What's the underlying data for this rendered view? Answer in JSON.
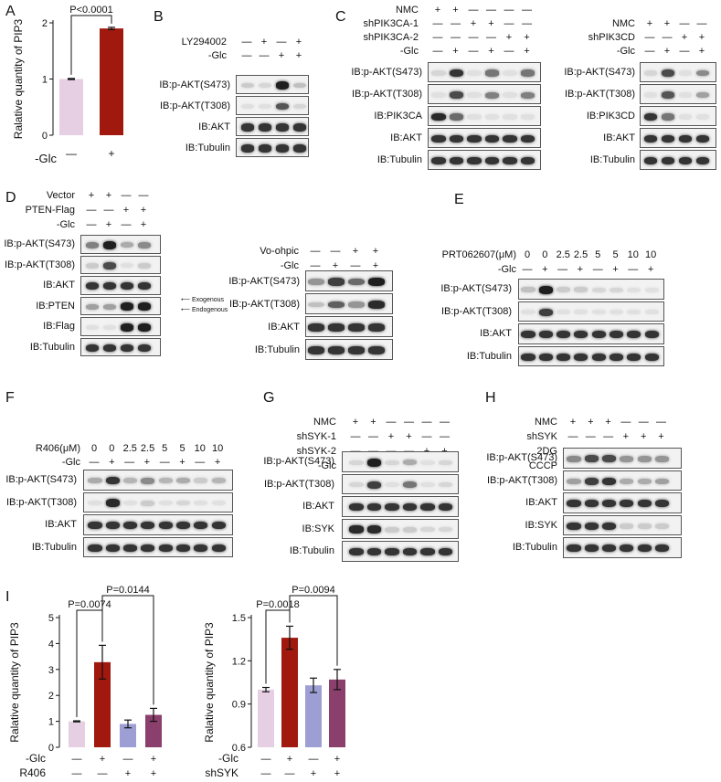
{
  "panels": {
    "A": {
      "label": "A",
      "pvalue": "P<0.0001",
      "ylabel": "Ralative quantity of PIP3",
      "row_label": "-Glc",
      "ticks": [
        "—",
        "+"
      ]
    },
    "B": {
      "label": "B",
      "conditions": [
        {
          "name": "LY294002",
          "marks": [
            "—",
            "+",
            "—",
            "+"
          ]
        },
        {
          "name": "-Glc",
          "marks": [
            "—",
            "—",
            "+",
            "+"
          ]
        }
      ],
      "blots": [
        "IB:p-AKT(S473)",
        "IB:p-AKT(T308)",
        "IB:AKT",
        "IB:Tubulin"
      ]
    },
    "C": {
      "label": "C",
      "left": {
        "conditions": [
          {
            "name": "NMC",
            "marks": [
              "+",
              "+",
              "—",
              "—",
              "—",
              "—"
            ]
          },
          {
            "name": "shPIK3CA-1",
            "marks": [
              "—",
              "—",
              "+",
              "+",
              "—",
              "—"
            ]
          },
          {
            "name": "shPIK3CA-2",
            "marks": [
              "—",
              "—",
              "—",
              "—",
              "+",
              "+"
            ]
          },
          {
            "name": "-Glc",
            "marks": [
              "—",
              "+",
              "—",
              "+",
              "—",
              "+"
            ]
          }
        ],
        "blots": [
          "IB:p-AKT(S473)",
          "IB:p-AKT(T308)",
          "IB:PIK3CA",
          "IB:AKT",
          "IB:Tubulin"
        ]
      },
      "right": {
        "conditions": [
          {
            "name": "NMC",
            "marks": [
              "+",
              "+",
              "—",
              "—"
            ]
          },
          {
            "name": "shPIK3CD",
            "marks": [
              "—",
              "—",
              "+",
              "+"
            ]
          },
          {
            "name": "-Glc",
            "marks": [
              "—",
              "+",
              "—",
              "+"
            ]
          }
        ],
        "blots": [
          "IB:p-AKT(S473)",
          "IB:p-AKT(T308)",
          "IB:PIK3CD",
          "IB:AKT",
          "IB:Tubulin"
        ]
      }
    },
    "D": {
      "label": "D",
      "left": {
        "conditions": [
          {
            "name": "Vector",
            "marks": [
              "+",
              "+",
              "—",
              "—"
            ]
          },
          {
            "name": "PTEN-Flag",
            "marks": [
              "—",
              "—",
              "+",
              "+"
            ]
          },
          {
            "name": "-Glc",
            "marks": [
              "—",
              "+",
              "—",
              "+"
            ]
          }
        ],
        "blots": [
          "IB:p-AKT(S473)",
          "IB:p-AKT(T308)",
          "IB:AKT",
          "IB:PTEN",
          "IB:Flag",
          "IB:Tubulin"
        ],
        "annotations": [
          "Exogenous",
          "Endogenous"
        ]
      },
      "right": {
        "conditions": [
          {
            "name": "Vo-ohpic",
            "marks": [
              "—",
              "—",
              "+",
              "+"
            ]
          },
          {
            "name": "-Glc",
            "marks": [
              "—",
              "+",
              "—",
              "+"
            ]
          }
        ],
        "blots": [
          "IB:p-AKT(S473)",
          "IB:p-AKT(T308)",
          "IB:AKT",
          "IB:Tubulin"
        ]
      }
    },
    "E": {
      "label": "E",
      "conditions": [
        {
          "name": "PRT062607(μM)",
          "marks": [
            "0",
            "0",
            "2.5",
            "2.5",
            "5",
            "5",
            "10",
            "10"
          ]
        },
        {
          "name": "-Glc",
          "marks": [
            "—",
            "+",
            "—",
            "+",
            "—",
            "+",
            "—",
            "+"
          ]
        }
      ],
      "blots": [
        "IB:p-AKT(S473)",
        "IB:p-AKT(T308)",
        "IB:AKT",
        "IB:Tubulin"
      ]
    },
    "F": {
      "label": "F",
      "conditions": [
        {
          "name": "R406(μM)",
          "marks": [
            "0",
            "0",
            "2.5",
            "2.5",
            "5",
            "5",
            "10",
            "10"
          ]
        },
        {
          "name": "-Glc",
          "marks": [
            "—",
            "+",
            "—",
            "+",
            "—",
            "+",
            "—",
            "+"
          ]
        }
      ],
      "blots": [
        "IB:p-AKT(S473)",
        "IB:p-AKT(T308)",
        "IB:AKT",
        "IB:Tubulin"
      ]
    },
    "G": {
      "label": "G",
      "conditions": [
        {
          "name": "NMC",
          "marks": [
            "+",
            "+",
            "—",
            "—",
            "—",
            "—"
          ]
        },
        {
          "name": "shSYK-1",
          "marks": [
            "—",
            "—",
            "+",
            "+",
            "—",
            "—"
          ]
        },
        {
          "name": "shSYK-2",
          "marks": [
            "—",
            "—",
            "—",
            "—",
            "+",
            "+"
          ]
        },
        {
          "name": "-Glc",
          "marks": [
            "—",
            "+",
            "—",
            "+",
            "—",
            "+"
          ]
        }
      ],
      "blots": [
        "IB:p-AKT(S473)",
        "IB:p-AKT(T308)",
        "IB:AKT",
        "IB:SYK",
        "IB:Tubulin"
      ]
    },
    "H": {
      "label": "H",
      "conditions": [
        {
          "name": "NMC",
          "marks": [
            "+",
            "+",
            "+",
            "—",
            "—",
            "—"
          ]
        },
        {
          "name": "shSYK",
          "marks": [
            "—",
            "—",
            "—",
            "+",
            "+",
            "+"
          ]
        },
        {
          "name": "2DG",
          "marks": [
            "—",
            "+",
            "—",
            "—",
            "+",
            "—"
          ]
        },
        {
          "name": "CCCP",
          "marks": [
            "—",
            "—",
            "+",
            "—",
            "—",
            "+"
          ]
        }
      ],
      "blots": [
        "IB:p-AKT(S473)",
        "IB:p-AKT(T308)",
        "IB:AKT",
        "IB:SYK",
        "IB:Tubulin"
      ]
    },
    "I": {
      "label": "I"
    }
  },
  "chart_data": [
    {
      "id": "A",
      "type": "bar",
      "categories": [
        "-Glc —",
        "-Glc +"
      ],
      "values": [
        1.0,
        1.9
      ],
      "errors": [
        0.01,
        0.02
      ],
      "ylabel": "Ralative quantity of PIP3",
      "ylim": [
        0,
        2
      ],
      "yticks": [
        0,
        1,
        2
      ],
      "colors": [
        "#e6cfe3",
        "#a0180e"
      ],
      "significance": [
        {
          "pair": [
            0,
            1
          ],
          "label": "P<0.0001"
        }
      ]
    },
    {
      "id": "I-left",
      "type": "bar",
      "categories": [
        "1",
        "2",
        "3",
        "4"
      ],
      "values": [
        1.0,
        3.28,
        0.9,
        1.25
      ],
      "errors": [
        0.02,
        0.65,
        0.15,
        0.25
      ],
      "ylabel": "Ralative quantity of PIP3",
      "ylim": [
        0,
        5
      ],
      "yticks": [
        0,
        1,
        2,
        3,
        4,
        5
      ],
      "colors": [
        "#e6cfe3",
        "#a0180e",
        "#9d9fd4",
        "#8a3f6c"
      ],
      "rows": [
        {
          "label": "-Glc",
          "marks": [
            "—",
            "+",
            "—",
            "+"
          ]
        },
        {
          "label": "R406",
          "marks": [
            "—",
            "—",
            "+",
            "+"
          ]
        }
      ],
      "significance": [
        {
          "pair": [
            0,
            1
          ],
          "label": "P=0.0074"
        },
        {
          "pair": [
            1,
            3
          ],
          "label": "P=0.0144"
        }
      ]
    },
    {
      "id": "I-right",
      "type": "bar",
      "categories": [
        "1",
        "2",
        "3",
        "4"
      ],
      "values": [
        1.0,
        1.36,
        1.03,
        1.07
      ],
      "errors": [
        0.015,
        0.08,
        0.05,
        0.07
      ],
      "ylabel": "Ralative quantity of PIP3",
      "ylim": [
        0.6,
        1.5
      ],
      "yticks": [
        0.6,
        0.9,
        1.2,
        1.5
      ],
      "colors": [
        "#e6cfe3",
        "#a0180e",
        "#9d9fd4",
        "#8a3f6c"
      ],
      "rows": [
        {
          "label": "-Glc",
          "marks": [
            "—",
            "+",
            "—",
            "+"
          ]
        },
        {
          "label": "shSYK",
          "marks": [
            "—",
            "—",
            "+",
            "+"
          ]
        }
      ],
      "significance": [
        {
          "pair": [
            0,
            1
          ],
          "label": "P=0.0018"
        },
        {
          "pair": [
            1,
            3
          ],
          "label": "P=0.0094"
        }
      ]
    }
  ]
}
